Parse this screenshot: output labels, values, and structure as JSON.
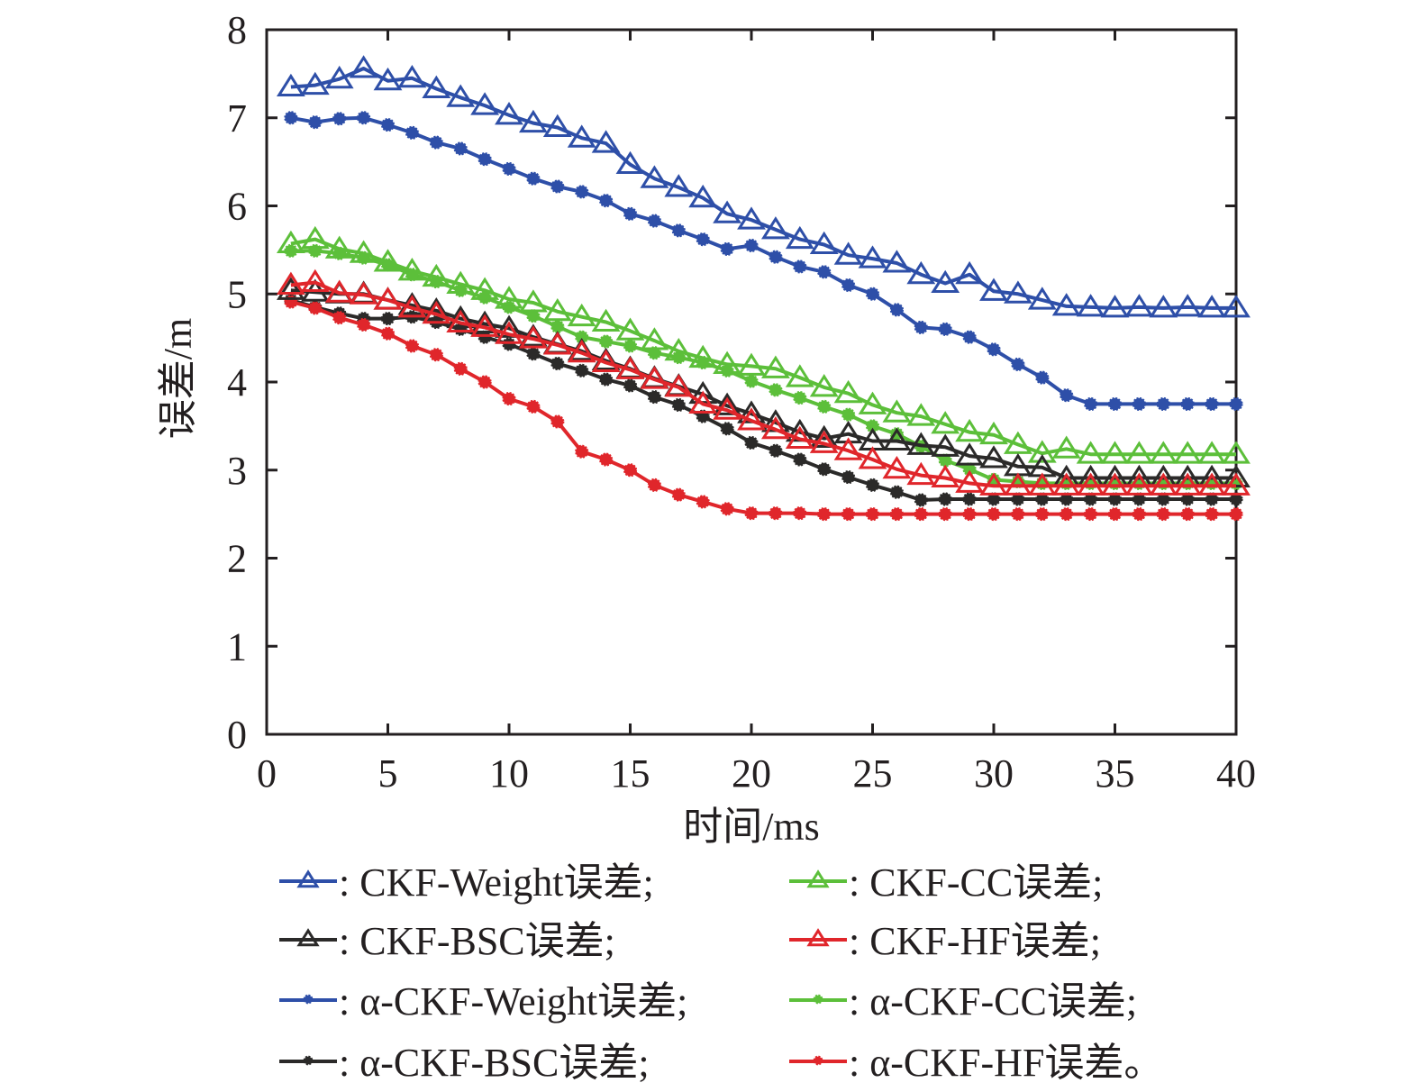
{
  "chart_data": {
    "type": "line",
    "title": "",
    "xlabel": "时间/ms",
    "ylabel": "误差/m",
    "xlim": [
      0,
      40
    ],
    "ylim": [
      0,
      8
    ],
    "xticks": [
      0,
      5,
      10,
      15,
      20,
      25,
      30,
      35,
      40
    ],
    "yticks": [
      0,
      1,
      2,
      3,
      4,
      5,
      6,
      7,
      8
    ],
    "grid": false,
    "legend_position": "bottom",
    "x": [
      1,
      2,
      3,
      4,
      5,
      6,
      7,
      8,
      9,
      10,
      11,
      12,
      13,
      14,
      15,
      16,
      17,
      18,
      19,
      20,
      21,
      22,
      23,
      24,
      25,
      26,
      27,
      28,
      29,
      30,
      31,
      32,
      33,
      34,
      35,
      36,
      37,
      38,
      39,
      40
    ],
    "series": [
      {
        "name": "CKF-Weight误差",
        "legend_label": ": CKF-Weight误差;",
        "color": "#2e4fa8",
        "marker": "triangle-open",
        "values": [
          7.35,
          7.37,
          7.44,
          7.56,
          7.42,
          7.45,
          7.33,
          7.23,
          7.14,
          7.03,
          6.94,
          6.89,
          6.77,
          6.71,
          6.47,
          6.31,
          6.21,
          6.09,
          5.91,
          5.84,
          5.73,
          5.62,
          5.56,
          5.44,
          5.4,
          5.35,
          5.22,
          5.12,
          5.22,
          5.03,
          5.0,
          4.93,
          4.86,
          4.85,
          4.84,
          4.85,
          4.84,
          4.85,
          4.84,
          4.84
        ]
      },
      {
        "name": "CKF-CC误差",
        "legend_label": ": CKF-CC误差;",
        "color": "#5cbf3a",
        "marker": "triangle-open",
        "values": [
          5.57,
          5.62,
          5.51,
          5.46,
          5.36,
          5.26,
          5.19,
          5.11,
          5.04,
          4.94,
          4.9,
          4.8,
          4.74,
          4.68,
          4.58,
          4.47,
          4.35,
          4.27,
          4.2,
          4.18,
          4.15,
          4.05,
          3.94,
          3.87,
          3.74,
          3.65,
          3.61,
          3.52,
          3.43,
          3.4,
          3.29,
          3.19,
          3.24,
          3.18,
          3.18,
          3.18,
          3.18,
          3.18,
          3.18,
          3.18
        ]
      },
      {
        "name": "CKF-BSC误差",
        "legend_label": ": CKF-BSC误差;",
        "color": "#2b2a29",
        "marker": "triangle-open",
        "values": [
          5.04,
          5.02,
          5.0,
          5.0,
          4.93,
          4.87,
          4.81,
          4.72,
          4.66,
          4.61,
          4.51,
          4.43,
          4.35,
          4.24,
          4.15,
          4.04,
          3.95,
          3.86,
          3.73,
          3.64,
          3.54,
          3.43,
          3.36,
          3.41,
          3.33,
          3.33,
          3.28,
          3.26,
          3.16,
          3.13,
          3.04,
          3.03,
          2.91,
          2.91,
          2.91,
          2.91,
          2.91,
          2.91,
          2.91,
          2.91
        ]
      },
      {
        "name": "CKF-HF误差",
        "legend_label": ": CKF-HF误差;",
        "color": "#e0262b",
        "marker": "triangle-open",
        "values": [
          5.1,
          5.13,
          5.01,
          4.99,
          4.93,
          4.84,
          4.77,
          4.67,
          4.62,
          4.54,
          4.49,
          4.42,
          4.33,
          4.22,
          4.14,
          4.03,
          3.94,
          3.75,
          3.68,
          3.56,
          3.46,
          3.35,
          3.3,
          3.22,
          3.12,
          3.01,
          2.94,
          2.91,
          2.85,
          2.82,
          2.82,
          2.82,
          2.82,
          2.82,
          2.82,
          2.82,
          2.82,
          2.82,
          2.82,
          2.82
        ]
      },
      {
        "name": "α-CKF-Weight误差",
        "legend_label": ": α-CKF-Weight误差;",
        "color": "#2e4fa8",
        "marker": "dot",
        "values": [
          7.0,
          6.95,
          6.99,
          7.0,
          6.92,
          6.83,
          6.72,
          6.65,
          6.53,
          6.42,
          6.31,
          6.22,
          6.16,
          6.06,
          5.91,
          5.83,
          5.72,
          5.62,
          5.51,
          5.55,
          5.42,
          5.31,
          5.25,
          5.1,
          5.0,
          4.82,
          4.62,
          4.6,
          4.51,
          4.37,
          4.2,
          4.05,
          3.85,
          3.75,
          3.75,
          3.75,
          3.75,
          3.75,
          3.75,
          3.75
        ]
      },
      {
        "name": "α-CKF-CC误差",
        "legend_label": ": α-CKF-CC误差;",
        "color": "#5cbf3a",
        "marker": "dot",
        "values": [
          5.49,
          5.49,
          5.46,
          5.41,
          5.33,
          5.22,
          5.14,
          5.04,
          4.96,
          4.85,
          4.75,
          4.63,
          4.51,
          4.46,
          4.41,
          4.33,
          4.28,
          4.22,
          4.13,
          4.01,
          3.91,
          3.82,
          3.72,
          3.63,
          3.5,
          3.41,
          3.27,
          3.11,
          3.01,
          2.89,
          2.87,
          2.85,
          2.85,
          2.85,
          2.85,
          2.85,
          2.85,
          2.85,
          2.85,
          2.85
        ]
      },
      {
        "name": "α-CKF-BSC误差",
        "legend_label": ": α-CKF-BSC误差;",
        "color": "#2b2a29",
        "marker": "dot",
        "values": [
          4.93,
          4.85,
          4.78,
          4.72,
          4.72,
          4.74,
          4.68,
          4.6,
          4.51,
          4.43,
          4.32,
          4.21,
          4.13,
          4.03,
          3.96,
          3.83,
          3.74,
          3.61,
          3.47,
          3.31,
          3.22,
          3.12,
          3.01,
          2.92,
          2.83,
          2.75,
          2.66,
          2.67,
          2.67,
          2.67,
          2.67,
          2.67,
          2.67,
          2.67,
          2.67,
          2.67,
          2.67,
          2.67,
          2.67,
          2.67
        ]
      },
      {
        "name": "α-CKF-HF误差",
        "legend_label": ": α-CKF-HF误差。",
        "color": "#e0262b",
        "marker": "dot",
        "values": [
          4.91,
          4.84,
          4.73,
          4.65,
          4.55,
          4.41,
          4.31,
          4.15,
          4.0,
          3.81,
          3.72,
          3.55,
          3.21,
          3.12,
          3.0,
          2.83,
          2.72,
          2.64,
          2.56,
          2.51,
          2.51,
          2.51,
          2.5,
          2.5,
          2.5,
          2.5,
          2.5,
          2.5,
          2.5,
          2.5,
          2.5,
          2.5,
          2.5,
          2.5,
          2.5,
          2.5,
          2.5,
          2.5,
          2.5,
          2.5
        ]
      }
    ]
  }
}
